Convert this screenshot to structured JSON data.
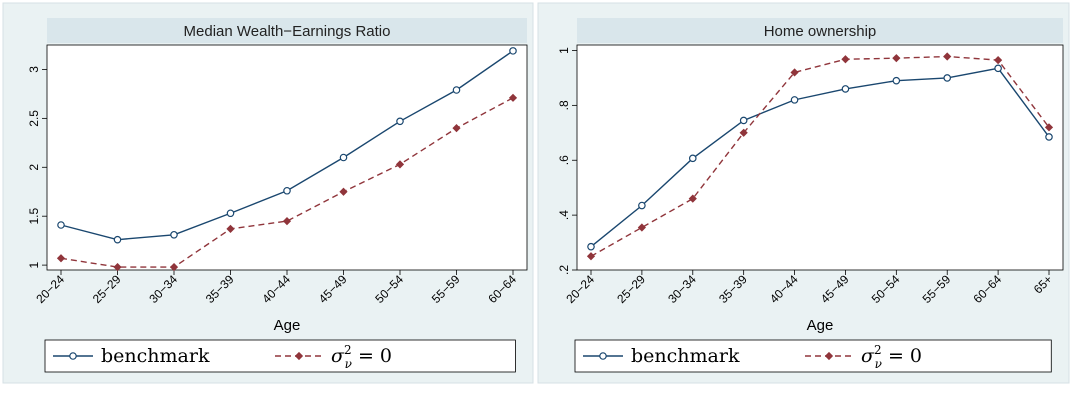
{
  "colors": {
    "panel_bg": "#eaf2f3",
    "plot_bg": "#ffffff",
    "title_band": "#d9e6eb",
    "benchmark": "#1a476f",
    "sigma_zero": "#90353b"
  },
  "legend": {
    "benchmark_label": "benchmark",
    "sigma_label_main": "σ",
    "sigma_label_sup": "2",
    "sigma_label_sub": "ν",
    "sigma_label_rest": " = 0"
  },
  "chart_data": [
    {
      "type": "line",
      "title": "Median Wealth−Earnings Ratio",
      "xlabel": "Age",
      "ylabel": "",
      "categories": [
        "20−24",
        "25−29",
        "30−34",
        "35−39",
        "40−44",
        "45−49",
        "50−54",
        "55−59",
        "60−64"
      ],
      "ylim": [
        0.95,
        3.25
      ],
      "yticks": [
        1,
        1.5,
        2,
        2.5,
        3
      ],
      "ytick_labels": [
        "1",
        "1.5",
        "2",
        "2.5",
        "3"
      ],
      "grid": false,
      "legend_position": "bottom",
      "series": [
        {
          "name": "benchmark",
          "values": [
            1.41,
            1.26,
            1.31,
            1.53,
            1.76,
            2.1,
            2.47,
            2.79,
            3.19
          ]
        },
        {
          "name": "sigma_nu^2 = 0",
          "values": [
            1.07,
            0.98,
            0.98,
            1.37,
            1.45,
            1.75,
            2.03,
            2.4,
            2.71
          ]
        }
      ]
    },
    {
      "type": "line",
      "title": "Home ownership",
      "xlabel": "Age",
      "ylabel": "",
      "categories": [
        "20−24",
        "25−29",
        "30−34",
        "35−39",
        "40−44",
        "45−49",
        "50−54",
        "55−59",
        "60−64",
        "65+"
      ],
      "ylim": [
        0.2,
        1.02
      ],
      "yticks": [
        0.2,
        0.4,
        0.6,
        0.8,
        1.0
      ],
      "ytick_labels": [
        ".2",
        ".4",
        ".6",
        ".8",
        "1"
      ],
      "grid": false,
      "legend_position": "bottom",
      "series": [
        {
          "name": "benchmark",
          "values": [
            0.285,
            0.435,
            0.607,
            0.745,
            0.82,
            0.86,
            0.89,
            0.9,
            0.935,
            0.685
          ]
        },
        {
          "name": "sigma_nu^2 = 0",
          "values": [
            0.25,
            0.355,
            0.46,
            0.7,
            0.92,
            0.968,
            0.972,
            0.978,
            0.965,
            0.72
          ]
        }
      ]
    }
  ]
}
